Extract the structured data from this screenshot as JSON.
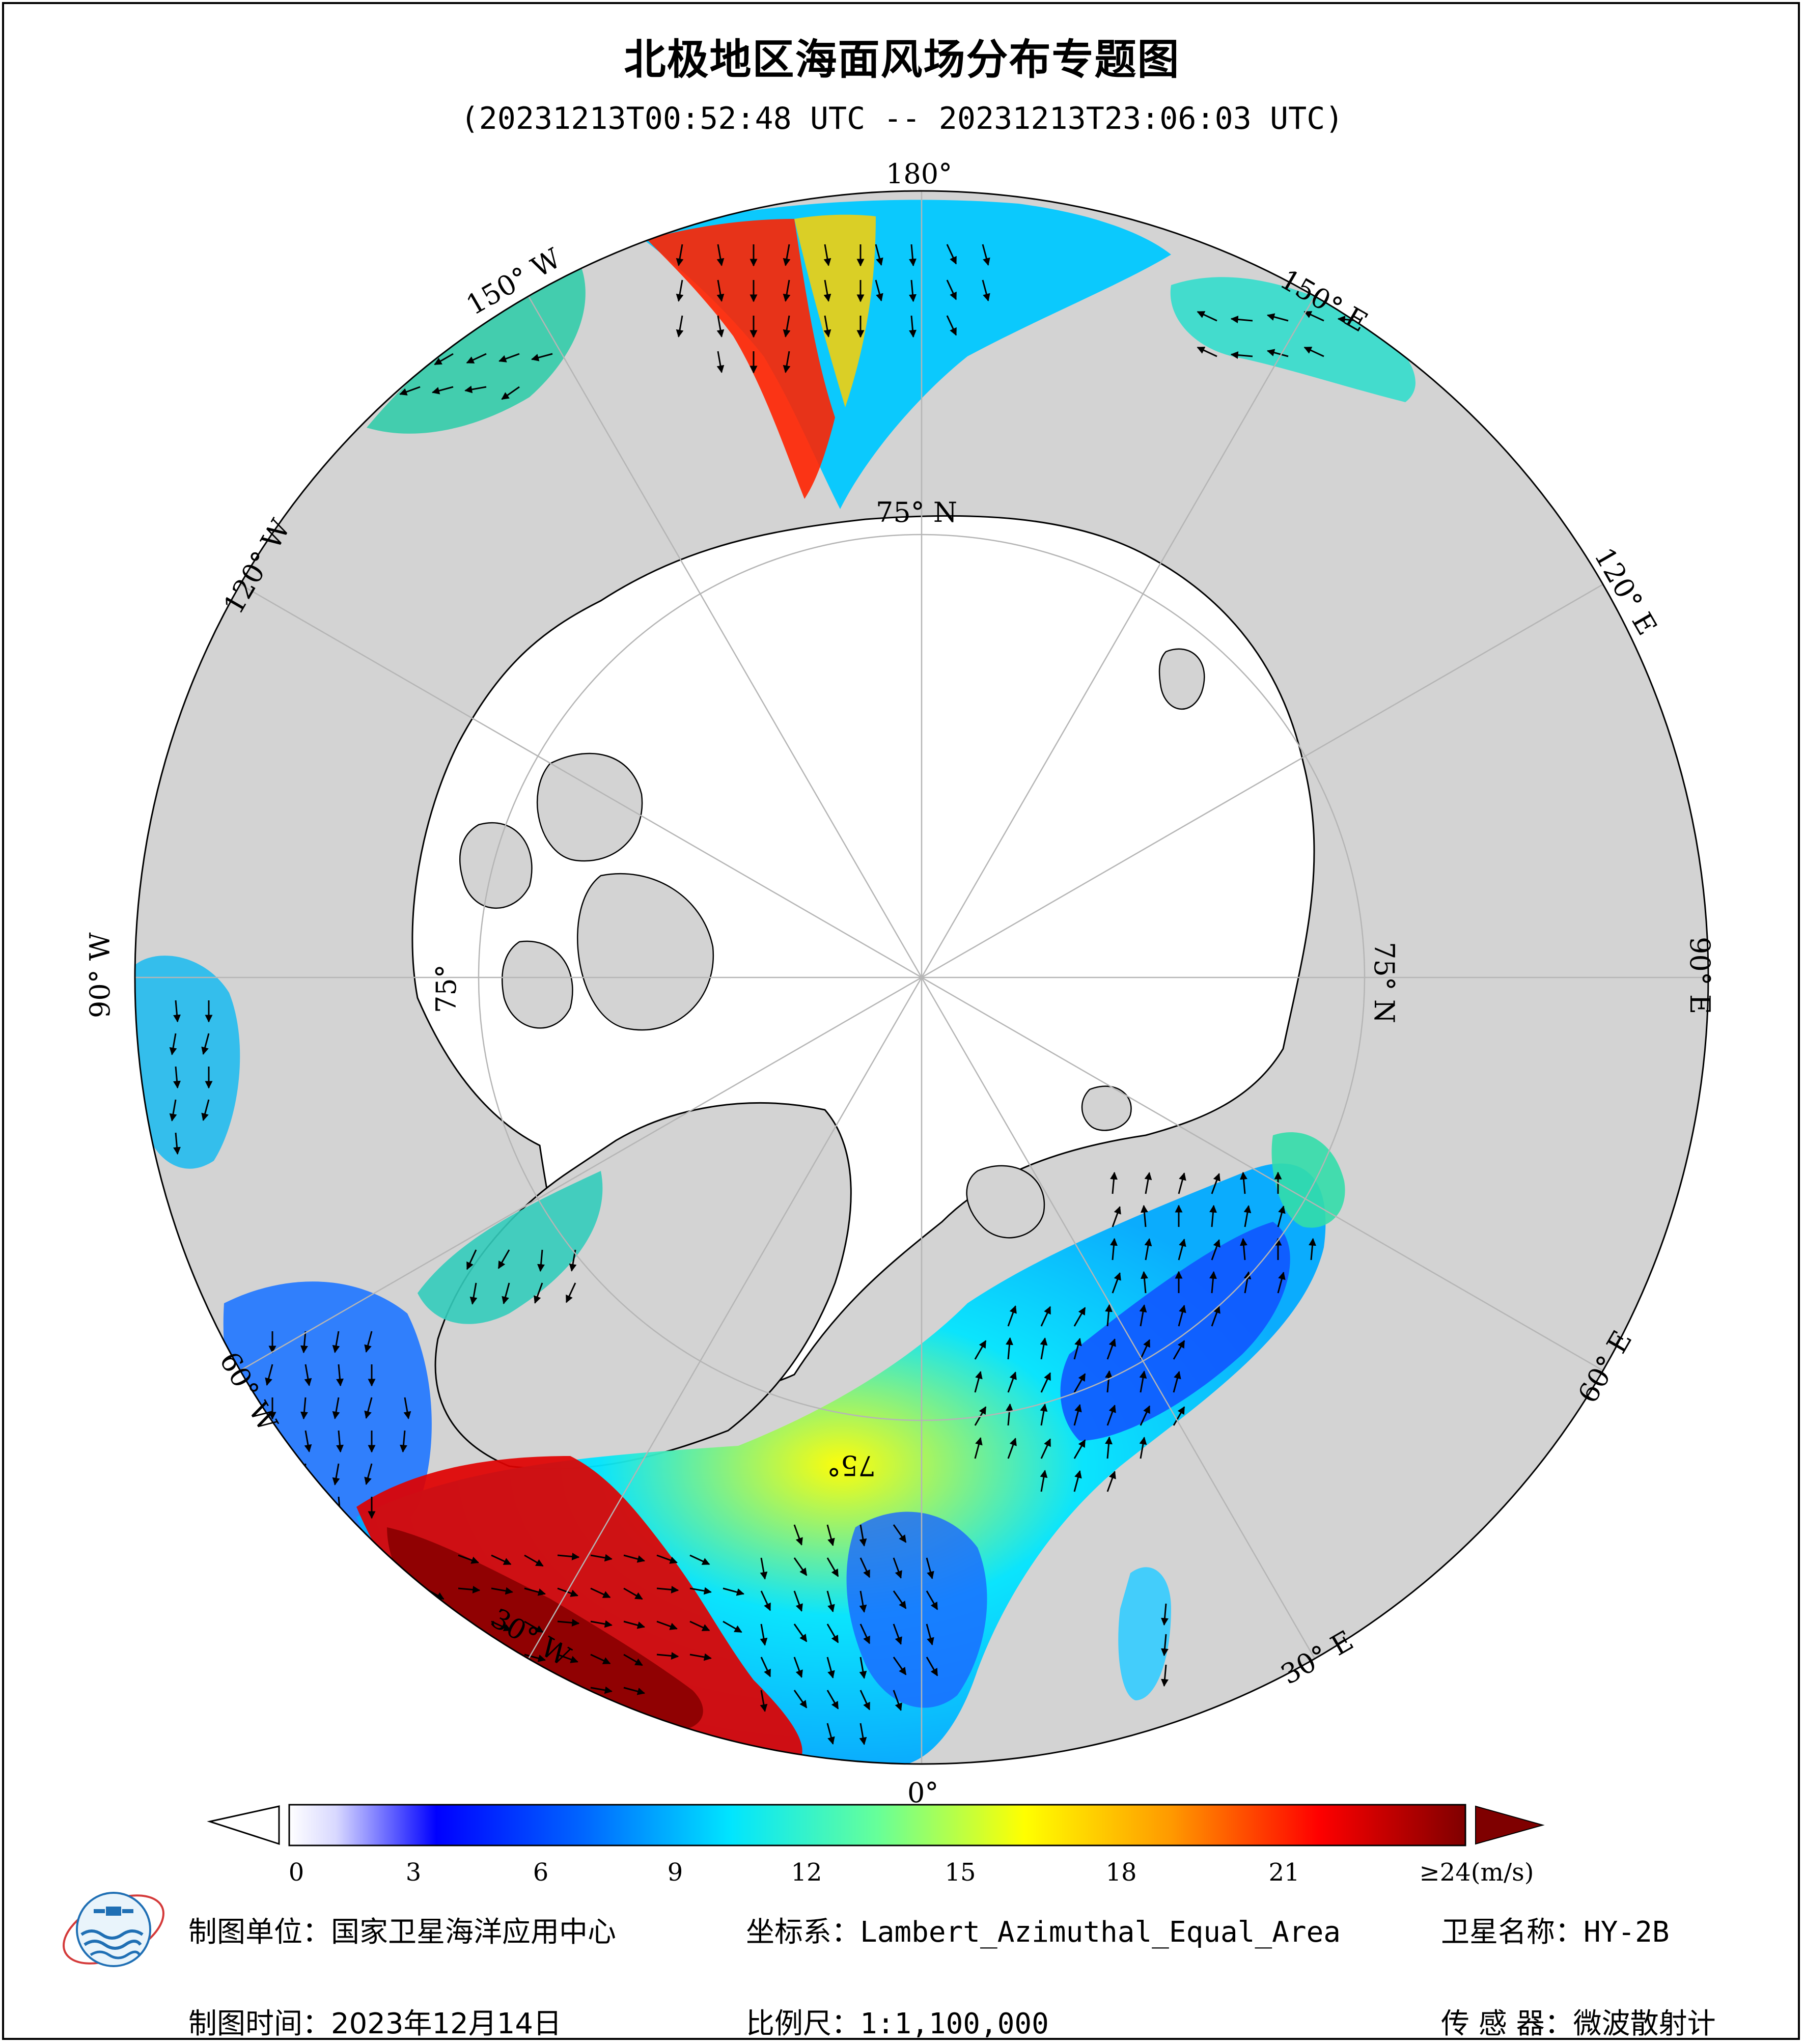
{
  "title": "北极地区海面风场分布专题图",
  "time_range": "(20231213T00:52:48 UTC -- 20231213T23:06:03 UTC)",
  "longitude_labels": {
    "180": "180°",
    "150W": "150° W",
    "120W": "120° W",
    "90W": "90° W",
    "60W": "60° W",
    "30W": "30° W",
    "0": "0°",
    "30E": "30° E",
    "60E": "60° E",
    "90E": "90° E",
    "120E": "120° E",
    "150E": "150° E"
  },
  "latitude_labels": {
    "top": "75° N",
    "right": "75° N",
    "left": "75°",
    "bottom": "75°"
  },
  "colorbar": {
    "ticks": [
      "0",
      "3",
      "6",
      "9",
      "12",
      "15",
      "18",
      "21",
      "≥24(m/s)"
    ],
    "tick_values": [
      0,
      3,
      6,
      9,
      12,
      15,
      18,
      21,
      24
    ],
    "range": [
      0,
      24
    ],
    "unit": "m/s",
    "colors": [
      "#ffffff",
      "#0000ff",
      "#00e5ff",
      "#ffff00",
      "#ff0000",
      "#7f0000"
    ]
  },
  "footer": {
    "org_label": "制图单位：",
    "org_value": "国家卫星海洋应用中心",
    "crs_label": "坐标系：",
    "crs_value": "Lambert_Azimuthal_Equal_Area",
    "sat_label": "卫星名称：",
    "sat_value": "HY-2B",
    "date_label": "制图时间：",
    "date_value": "2023年12月14日",
    "scale_label": "比例尺：",
    "scale_value": "1:1,100,000",
    "sensor_label": "传 感 器：",
    "sensor_value": "微波散射计"
  },
  "colors": {
    "land": "#d3d3d3",
    "ice": "#ffffff",
    "graticule": "#b5b5b5"
  }
}
